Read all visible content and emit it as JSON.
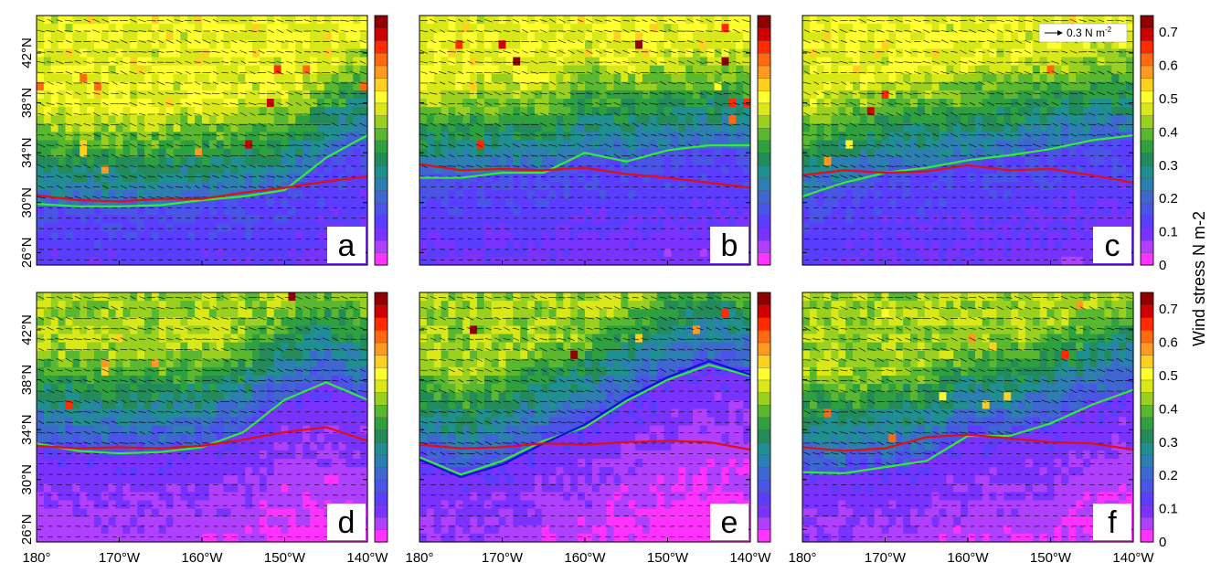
{
  "figure": {
    "colorbar_title": "Wind stress N m-2",
    "colorbar_ticks": [
      "0",
      "0.1",
      "0.2",
      "0.3",
      "0.4",
      "0.5",
      "0.6",
      "0.7"
    ],
    "colorbar_colors": [
      "#ff33ff",
      "#b040ff",
      "#7a33ff",
      "#5a3dff",
      "#4a55e8",
      "#3e68d0",
      "#2c7fb0",
      "#1f8f8f",
      "#238a5a",
      "#2ea040",
      "#5ab830",
      "#9ad020",
      "#d8e818",
      "#ffff30",
      "#ffd020",
      "#ff9a20",
      "#ff6a10",
      "#ff2a00",
      "#d00000",
      "#900000"
    ],
    "reference_vector": "0.3 N m",
    "reference_vector_exp": "-2",
    "lat_ticks": [
      "26°N",
      "30°N",
      "34°N",
      "38°N",
      "42°N"
    ],
    "lon_ticks": [
      "180°",
      "170°W",
      "160°W",
      "150°W",
      "140°W"
    ]
  },
  "chart_data": [
    {
      "panel": "a",
      "type": "heatmap",
      "lat_range": [
        25,
        45
      ],
      "lon_range": [
        -180,
        -140
      ],
      "red_line": {
        "lon": [
          -180,
          -175,
          -170,
          -165,
          -160,
          -155,
          -150,
          -145,
          -140
        ],
        "lat": [
          30.6,
          30.2,
          30.1,
          30.3,
          30.3,
          30.8,
          31.2,
          31.7,
          32.1
        ]
      },
      "green_line": {
        "lon": [
          -180,
          -175,
          -170,
          -165,
          -160,
          -155,
          -150,
          -145,
          -140
        ],
        "lat": [
          29.9,
          29.7,
          29.7,
          29.8,
          30.2,
          30.5,
          31.0,
          33.6,
          35.4
        ]
      }
    },
    {
      "panel": "b",
      "type": "heatmap",
      "lat_range": [
        25,
        45
      ],
      "lon_range": [
        -180,
        -140
      ],
      "red_line": {
        "lon": [
          -180,
          -175,
          -170,
          -165,
          -160,
          -155,
          -150,
          -145,
          -140
        ],
        "lat": [
          33.1,
          32.6,
          32.7,
          32.6,
          32.8,
          32.3,
          32.0,
          31.6,
          31.2
        ]
      },
      "green_line": {
        "lon": [
          -180,
          -175,
          -170,
          -165,
          -160,
          -155,
          -150,
          -145,
          -140
        ],
        "lat": [
          32.0,
          32.0,
          32.4,
          32.4,
          34.0,
          33.3,
          34.2,
          34.6,
          34.6
        ]
      }
    },
    {
      "panel": "c",
      "type": "heatmap",
      "lat_range": [
        25,
        45
      ],
      "lon_range": [
        -180,
        -140
      ],
      "red_line": {
        "lon": [
          -180,
          -175,
          -170,
          -165,
          -160,
          -155,
          -150,
          -145,
          -140
        ],
        "lat": [
          32.2,
          32.6,
          32.4,
          32.5,
          33.0,
          32.6,
          32.7,
          32.2,
          31.6
        ]
      },
      "green_line": {
        "lon": [
          -180,
          -175,
          -170,
          -165,
          -160,
          -155,
          -150,
          -145,
          -140
        ],
        "lat": [
          30.5,
          31.6,
          32.4,
          32.8,
          33.4,
          33.8,
          34.3,
          35.0,
          35.4
        ]
      }
    },
    {
      "panel": "d",
      "type": "heatmap",
      "lat_range": [
        25,
        45
      ],
      "lon_range": [
        -180,
        -140
      ],
      "red_line": {
        "lon": [
          -180,
          -175,
          -170,
          -165,
          -160,
          -155,
          -150,
          -145,
          -140
        ],
        "lat": [
          32.7,
          32.5,
          32.6,
          32.5,
          32.7,
          33.2,
          33.8,
          34.2,
          33.1
        ]
      },
      "green_line": {
        "lon": [
          -180,
          -175,
          -170,
          -165,
          -160,
          -155,
          -150,
          -145,
          -140
        ],
        "lat": [
          32.9,
          32.3,
          32.1,
          32.2,
          32.6,
          33.8,
          36.4,
          37.8,
          36.4
        ]
      }
    },
    {
      "panel": "e",
      "type": "heatmap",
      "lat_range": [
        25,
        45
      ],
      "lon_range": [
        -180,
        -140
      ],
      "red_line": {
        "lon": [
          -180,
          -175,
          -170,
          -165,
          -160,
          -155,
          -150,
          -145,
          -140
        ],
        "lat": [
          32.8,
          32.5,
          32.6,
          32.9,
          32.8,
          33.0,
          33.1,
          33.0,
          32.4
        ]
      },
      "green_line": {
        "lon": [
          -180,
          -175,
          -170,
          -165,
          -160,
          -155,
          -150,
          -145,
          -140
        ],
        "lat": [
          31.8,
          30.4,
          31.5,
          33.1,
          34.2,
          36.3,
          38.0,
          39.2,
          38.3
        ]
      },
      "blue_line": {
        "lon": [
          -180,
          -175,
          -170,
          -165,
          -160,
          -155,
          -150,
          -145,
          -140
        ],
        "lat": [
          31.6,
          30.2,
          31.2,
          32.9,
          34.4,
          36.5,
          38.2,
          39.5,
          38.4
        ]
      }
    },
    {
      "panel": "f",
      "type": "heatmap",
      "lat_range": [
        25,
        45
      ],
      "lon_range": [
        -180,
        -140
      ],
      "red_line": {
        "lon": [
          -180,
          -175,
          -170,
          -165,
          -160,
          -155,
          -150,
          -145,
          -140
        ],
        "lat": [
          32.6,
          32.3,
          32.5,
          33.4,
          33.6,
          33.3,
          33.0,
          32.9,
          32.4
        ]
      },
      "green_line": {
        "lon": [
          -180,
          -175,
          -170,
          -165,
          -160,
          -155,
          -150,
          -145,
          -140
        ],
        "lat": [
          30.6,
          30.5,
          31.0,
          31.5,
          33.5,
          33.5,
          34.5,
          36.0,
          37.2
        ]
      }
    }
  ]
}
